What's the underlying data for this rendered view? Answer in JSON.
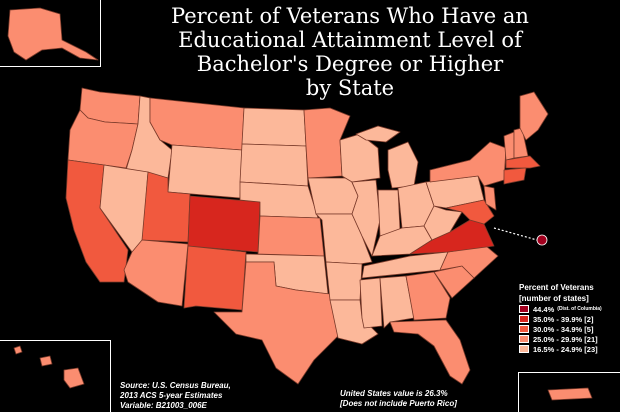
{
  "title_lines": [
    "Percent of Veterans Who Have an",
    "Educational Attainment Level of",
    "Bachelor's Degree or Higher",
    "by State"
  ],
  "legend": {
    "title": "Percent of Veterans",
    "subtitle": "[number of states]",
    "items": [
      {
        "label": "44.4%",
        "note": "(Dist. of Columbia)",
        "color": "#a1001e"
      },
      {
        "label": "35.0% - 39.9% [2]",
        "note": "",
        "color": "#d7261e"
      },
      {
        "label": "30.0% - 34.9% [5]",
        "note": "",
        "color": "#f1593e"
      },
      {
        "label": "25.0% - 29.9% [21]",
        "note": "",
        "color": "#fb8d70"
      },
      {
        "label": "16.5% - 24.9% [23]",
        "note": "",
        "color": "#fcb89a"
      }
    ]
  },
  "source": {
    "line1": "Source: U.S. Census Bureau,",
    "line2": "2013 ACS 5-year Estimates",
    "line3": "Variable: B21003_006E"
  },
  "us_value": {
    "line1": "United States value is 26.3%",
    "line2": "[Does not include Puerto Rico]"
  },
  "map_colors": {
    "border": "#7a3a2a",
    "dc": "#a1001e",
    "c35": "#d7261e",
    "c30": "#f1593e",
    "c25": "#fb8d70",
    "c16": "#fcb89a"
  }
}
